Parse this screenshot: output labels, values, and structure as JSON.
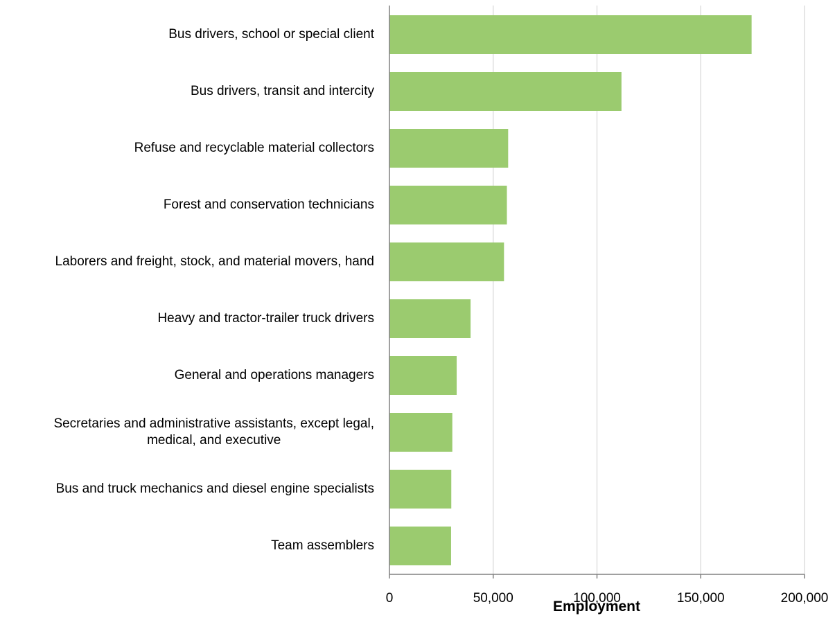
{
  "chart_data": {
    "type": "bar",
    "orientation": "horizontal",
    "categories": [
      [
        "Bus drivers, school or special client"
      ],
      [
        "Bus drivers, transit and intercity"
      ],
      [
        "Refuse and recyclable material collectors"
      ],
      [
        "Forest and conservation technicians"
      ],
      [
        "Laborers and freight, stock, and material movers, hand"
      ],
      [
        "Heavy and tractor-trailer truck drivers"
      ],
      [
        "General and operations managers"
      ],
      [
        "Secretaries and administrative assistants, except legal,",
        "medical, and executive"
      ],
      [
        "Bus and truck mechanics and diesel engine specialists"
      ],
      [
        "Team assemblers"
      ]
    ],
    "values": [
      174500,
      111800,
      57200,
      56600,
      55200,
      39100,
      32400,
      30300,
      29800,
      29700
    ],
    "xlabel": "Employment",
    "ylabel": "",
    "title": "",
    "xlim": [
      0,
      200000
    ],
    "xticks": [
      0,
      50000,
      100000,
      150000,
      200000
    ],
    "xtick_labels": [
      "0",
      "50,000",
      "100,000",
      "150,000",
      "200,000"
    ],
    "grid": "vertical",
    "legend": "none",
    "colors": {
      "bar": "#9bcb6f",
      "grid": "#d9d9d9",
      "axis": "#808080"
    }
  }
}
